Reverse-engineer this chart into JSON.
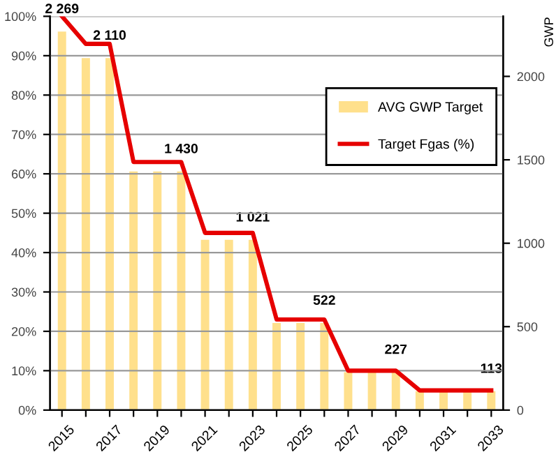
{
  "chart_data": {
    "type": "bar",
    "categories": [
      "2015",
      null,
      "2017",
      null,
      "2019",
      null,
      "2021",
      null,
      "2023",
      null,
      "2025",
      null,
      "2027",
      null,
      "2029",
      null,
      "2031",
      null,
      "2033"
    ],
    "series": [
      {
        "name": "AVG GWP Target",
        "axis": "y2",
        "color": "#ffe08c",
        "values": [
          2269,
          2110,
          2110,
          1430,
          1430,
          1430,
          1021,
          1021,
          1021,
          522,
          522,
          522,
          227,
          227,
          227,
          113,
          113,
          113,
          113
        ],
        "value_labels": [
          "2 269",
          null,
          "2 110",
          null,
          null,
          "1 430",
          null,
          null,
          "1 021",
          null,
          null,
          "522",
          null,
          null,
          "227",
          null,
          null,
          null,
          "113"
        ]
      },
      {
        "name": "Target Fgas (%)",
        "type": "line",
        "color": "#e60000",
        "values": [
          100,
          93,
          93,
          63,
          63,
          63,
          45,
          45,
          45,
          23,
          23,
          23,
          10,
          10,
          10,
          5,
          5,
          5,
          5
        ]
      }
    ],
    "ylim": [
      0,
      100
    ],
    "yticks": [
      {
        "value": 0,
        "label": "0%"
      },
      {
        "value": 10,
        "label": "10%"
      },
      {
        "value": 20,
        "label": "20%"
      },
      {
        "value": 30,
        "label": "30%"
      },
      {
        "value": 40,
        "label": "40%"
      },
      {
        "value": 50,
        "label": "50%"
      },
      {
        "value": 60,
        "label": "60%"
      },
      {
        "value": 70,
        "label": "70%"
      },
      {
        "value": 80,
        "label": "80%"
      },
      {
        "value": 90,
        "label": "90%"
      },
      {
        "value": 100,
        "label": "100%"
      }
    ],
    "y2lim": [
      0,
      2360
    ],
    "y2ticks": [
      0,
      500,
      1000,
      1500,
      2000
    ],
    "y2label": "GWP",
    "grid": "y",
    "legend": "right",
    "marker": "none",
    "line_style": "solid"
  }
}
